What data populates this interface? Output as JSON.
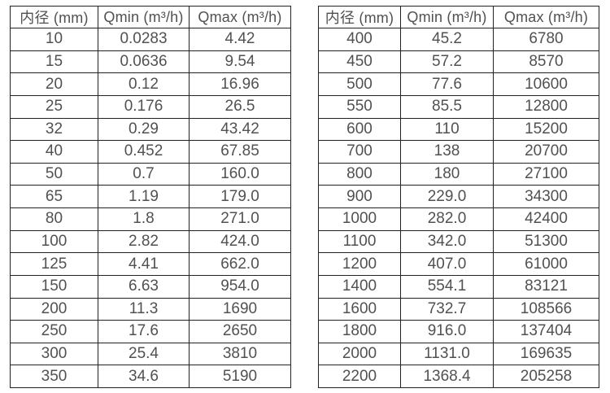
{
  "page": {
    "background_color": "#ffffff",
    "text_color": "#515151",
    "border_color": "#222222"
  },
  "tables": [
    {
      "name": "small-diameter-flow-table",
      "headers": [
        "内径 (mm)",
        "Qmin (m³/h)",
        "Qmax (m³/h)"
      ],
      "rows": [
        [
          "10",
          "0.0283",
          "4.42"
        ],
        [
          "15",
          "0.0636",
          "9.54"
        ],
        [
          "20",
          "0.12",
          "16.96"
        ],
        [
          "25",
          "0.176",
          "26.5"
        ],
        [
          "32",
          "0.29",
          "43.42"
        ],
        [
          "40",
          "0.452",
          "67.85"
        ],
        [
          "50",
          "0.7",
          "160.0"
        ],
        [
          "65",
          "1.19",
          "179.0"
        ],
        [
          "80",
          "1.8",
          "271.0"
        ],
        [
          "100",
          "2.82",
          "424.0"
        ],
        [
          "125",
          "4.41",
          "662.0"
        ],
        [
          "150",
          "6.63",
          "954.0"
        ],
        [
          "200",
          "11.3",
          "1690"
        ],
        [
          "250",
          "17.6",
          "2650"
        ],
        [
          "300",
          "25.4",
          "3810"
        ],
        [
          "350",
          "34.6",
          "5190"
        ]
      ]
    },
    {
      "name": "large-diameter-flow-table",
      "headers": [
        "内径 (mm)",
        "Qmin (m³/h)",
        "Qmax (m³/h)"
      ],
      "rows": [
        [
          "400",
          "45.2",
          "6780"
        ],
        [
          "450",
          "57.2",
          "8570"
        ],
        [
          "500",
          "77.6",
          "10600"
        ],
        [
          "550",
          "85.5",
          "12800"
        ],
        [
          "600",
          "110",
          "15200"
        ],
        [
          "700",
          "138",
          "20700"
        ],
        [
          "800",
          "180",
          "27100"
        ],
        [
          "900",
          "229.0",
          "34300"
        ],
        [
          "1000",
          "282.0",
          "42400"
        ],
        [
          "1100",
          "342.0",
          "51300"
        ],
        [
          "1200",
          "407.0",
          "61000"
        ],
        [
          "1400",
          "554.1",
          "83121"
        ],
        [
          "1600",
          "732.7",
          "108566"
        ],
        [
          "1800",
          "916.0",
          "137404"
        ],
        [
          "2000",
          "1131.0",
          "169635"
        ],
        [
          "2200",
          "1368.4",
          "205258"
        ]
      ]
    }
  ]
}
